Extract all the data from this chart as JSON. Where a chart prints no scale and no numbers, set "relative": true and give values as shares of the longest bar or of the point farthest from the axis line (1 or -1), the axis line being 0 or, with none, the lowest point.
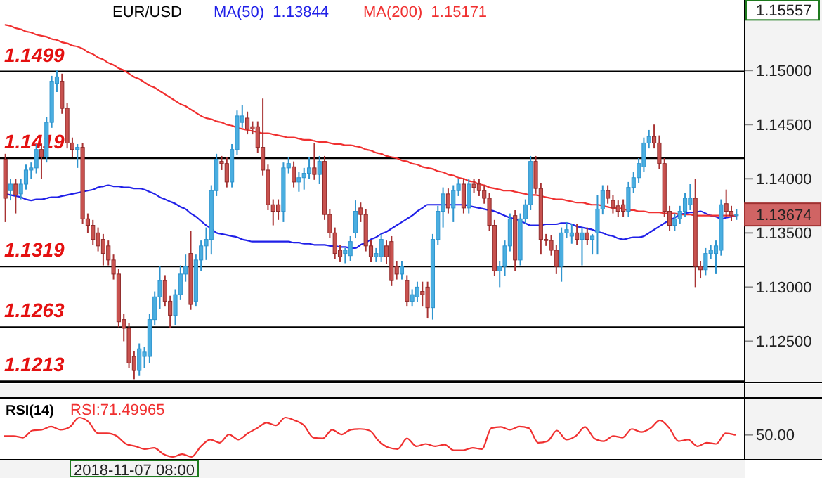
{
  "chart_data": [
    {
      "type": "candlestick",
      "title": "EUR/USD",
      "legend": "top",
      "tick_labels": "y",
      "categories": [
        null,
        null,
        null,
        null,
        null,
        null,
        null,
        null,
        null,
        null,
        null,
        null,
        null,
        null,
        null,
        null,
        null,
        null,
        null,
        null,
        null,
        null,
        null,
        null,
        null,
        null,
        null,
        null,
        null,
        null,
        null,
        null,
        null,
        null,
        null,
        null,
        null,
        null,
        null,
        null,
        null,
        null,
        null,
        null,
        null,
        null,
        null,
        null,
        null,
        null,
        null,
        null,
        null,
        null,
        null,
        null,
        null,
        null,
        null,
        null,
        null,
        null,
        null,
        null,
        null,
        null,
        null,
        null,
        null,
        null,
        null,
        null,
        null,
        null,
        null,
        null,
        null,
        null,
        null,
        null,
        null,
        null,
        null,
        null,
        null,
        null,
        null,
        null,
        null,
        null,
        null,
        null,
        null,
        null,
        null,
        null,
        null,
        null,
        null,
        null,
        null,
        null,
        null,
        null,
        null,
        null,
        null,
        null,
        null,
        null,
        null,
        null,
        null,
        null,
        null,
        null,
        null,
        null,
        null,
        null,
        null,
        null,
        null,
        null,
        null,
        null,
        null,
        null,
        null,
        null,
        null,
        null,
        null,
        null,
        null,
        null,
        null,
        null,
        null,
        null,
        null,
        null,
        null
      ],
      "ohlc": [
        [
          1.1418,
          1.1423,
          1.136,
          1.1382
        ],
        [
          1.1389,
          1.14,
          1.138,
          1.1395
        ],
        [
          1.1395,
          1.14,
          1.1368,
          1.1385
        ],
        [
          1.1386,
          1.14,
          1.1381,
          1.1395
        ],
        [
          1.1395,
          1.1413,
          1.139,
          1.1408
        ],
        [
          1.1408,
          1.1415,
          1.14,
          1.141
        ],
        [
          1.141,
          1.1432,
          1.1405,
          1.1427
        ],
        [
          1.1427,
          1.1432,
          1.14,
          1.142
        ],
        [
          1.142,
          1.1457,
          1.1415,
          1.1452
        ],
        [
          1.1452,
          1.1495,
          1.1447,
          1.149
        ],
        [
          1.1488,
          1.15,
          1.148,
          1.1494
        ],
        [
          1.149,
          1.1497,
          1.146,
          1.1465
        ],
        [
          1.1465,
          1.147,
          1.1428,
          1.1433
        ],
        [
          1.1433,
          1.1438,
          1.142,
          1.1427
        ],
        [
          1.1427,
          1.1432,
          1.141,
          1.1429
        ],
        [
          1.1429,
          1.1433,
          1.1358,
          1.1363
        ],
        [
          1.1363,
          1.1368,
          1.135,
          1.1357
        ],
        [
          1.1357,
          1.1362,
          1.1339,
          1.1344
        ],
        [
          1.135,
          1.1355,
          1.1333,
          1.1338
        ],
        [
          1.1344,
          1.1349,
          1.132,
          1.1331
        ],
        [
          1.1338,
          1.1343,
          1.132,
          1.1325
        ],
        [
          1.1325,
          1.133,
          1.1307,
          1.1312
        ],
        [
          1.1312,
          1.1317,
          1.1263,
          1.1268
        ],
        [
          1.127,
          1.1275,
          1.125,
          1.1262
        ],
        [
          1.1262,
          1.1267,
          1.1225,
          1.123
        ],
        [
          1.1236,
          1.1241,
          1.1215,
          1.1223
        ],
        [
          1.1223,
          1.1248,
          1.1218,
          1.1243
        ],
        [
          1.1236,
          1.1245,
          1.1225,
          1.124
        ],
        [
          1.1236,
          1.1275,
          1.123,
          1.127
        ],
        [
          1.127,
          1.1296,
          1.1265,
          1.1291
        ],
        [
          1.1291,
          1.1319,
          1.128,
          1.1306
        ],
        [
          1.1306,
          1.1311,
          1.1282,
          1.1287
        ],
        [
          1.1287,
          1.1292,
          1.1262,
          1.1274
        ],
        [
          1.1274,
          1.1298,
          1.1265,
          1.1293
        ],
        [
          1.1293,
          1.132,
          1.1288,
          1.1312
        ],
        [
          1.1312,
          1.133,
          1.1305,
          1.1319
        ],
        [
          1.1331,
          1.1352,
          1.1279,
          1.1284
        ],
        [
          1.1287,
          1.133,
          1.1282,
          1.1325
        ],
        [
          1.1325,
          1.1343,
          1.1315,
          1.1338
        ],
        [
          1.1338,
          1.1355,
          1.1325,
          1.1344
        ],
        [
          1.1344,
          1.1394,
          1.133,
          1.1389
        ],
        [
          1.1389,
          1.1423,
          1.1384,
          1.1418
        ],
        [
          1.1416,
          1.1421,
          1.1408,
          1.1414
        ],
        [
          1.1414,
          1.142,
          1.1392,
          1.1397
        ],
        [
          1.1397,
          1.1432,
          1.1392,
          1.1427
        ],
        [
          1.1427,
          1.1463,
          1.1422,
          1.1458
        ],
        [
          1.1452,
          1.1468,
          1.1447,
          1.1458
        ],
        [
          1.1456,
          1.1462,
          1.1441,
          1.1446
        ],
        [
          1.1448,
          1.1453,
          1.1441,
          1.1446
        ],
        [
          1.1448,
          1.1453,
          1.1424,
          1.1429
        ],
        [
          1.1429,
          1.1474,
          1.1403,
          1.1408
        ],
        [
          1.1408,
          1.1413,
          1.1371,
          1.1376
        ],
        [
          1.1376,
          1.1381,
          1.1357,
          1.137
        ],
        [
          1.1376,
          1.1381,
          1.1362,
          1.137
        ],
        [
          1.137,
          1.1415,
          1.136,
          1.141
        ],
        [
          1.141,
          1.142,
          1.1405,
          1.1414
        ],
        [
          1.1411,
          1.1416,
          1.1392,
          1.1397
        ],
        [
          1.1397,
          1.1406,
          1.1388,
          1.1401
        ],
        [
          1.1401,
          1.141,
          1.139,
          1.1405
        ],
        [
          1.1405,
          1.142,
          1.14,
          1.141
        ],
        [
          1.141,
          1.1433,
          1.1399,
          1.1404
        ],
        [
          1.1404,
          1.1421,
          1.1395,
          1.1416
        ],
        [
          1.1416,
          1.1421,
          1.1362,
          1.1367
        ],
        [
          1.1367,
          1.1372,
          1.1345,
          1.135
        ],
        [
          1.135,
          1.1355,
          1.1326,
          1.1331
        ],
        [
          1.1334,
          1.1339,
          1.1323,
          1.1328
        ],
        [
          1.1331,
          1.1336,
          1.1322,
          1.1334
        ],
        [
          1.1329,
          1.1347,
          1.1324,
          1.1342
        ],
        [
          1.135,
          1.138,
          1.1345,
          1.137
        ],
        [
          1.1373,
          1.1378,
          1.136,
          1.1367
        ],
        [
          1.1367,
          1.1372,
          1.1333,
          1.1338
        ],
        [
          1.1338,
          1.1343,
          1.1323,
          1.1328
        ],
        [
          1.1328,
          1.1336,
          1.1323,
          1.1331
        ],
        [
          1.1328,
          1.1349,
          1.1323,
          1.1344
        ],
        [
          1.1338,
          1.1343,
          1.1321,
          1.1328
        ],
        [
          1.1342,
          1.1347,
          1.1301,
          1.1306
        ],
        [
          1.1319,
          1.1324,
          1.1307,
          1.1312
        ],
        [
          1.1312,
          1.1324,
          1.1307,
          1.1319
        ],
        [
          1.1306,
          1.1311,
          1.1282,
          1.1287
        ],
        [
          1.1287,
          1.1298,
          1.1282,
          1.1293
        ],
        [
          1.1291,
          1.1305,
          1.1286,
          1.13
        ],
        [
          1.1296,
          1.1305,
          1.1282,
          1.1293
        ],
        [
          1.13,
          1.1305,
          1.1271,
          1.1281
        ],
        [
          1.1281,
          1.1349,
          1.127,
          1.1344
        ],
        [
          1.1344,
          1.1375,
          1.1339,
          1.137
        ],
        [
          1.137,
          1.1392,
          1.1355,
          1.1386
        ],
        [
          1.1386,
          1.1391,
          1.1368,
          1.1373
        ],
        [
          1.1373,
          1.1394,
          1.136,
          1.1389
        ],
        [
          1.1389,
          1.14,
          1.1384,
          1.1395
        ],
        [
          1.1395,
          1.14,
          1.1368,
          1.1373
        ],
        [
          1.1373,
          1.14,
          1.1368,
          1.1395
        ],
        [
          1.1395,
          1.14,
          1.1387,
          1.1392
        ],
        [
          1.1395,
          1.14,
          1.1384,
          1.1389
        ],
        [
          1.1389,
          1.1394,
          1.1377,
          1.1382
        ],
        [
          1.1382,
          1.1387,
          1.1352,
          1.1357
        ],
        [
          1.1357,
          1.1362,
          1.131,
          1.1315
        ],
        [
          1.1315,
          1.1324,
          1.13,
          1.1319
        ],
        [
          1.1319,
          1.1343,
          1.131,
          1.1338
        ],
        [
          1.1338,
          1.1368,
          1.1333,
          1.1363
        ],
        [
          1.1366,
          1.1371,
          1.1315,
          1.1325
        ],
        [
          1.1325,
          1.1368,
          1.132,
          1.1363
        ],
        [
          1.1363,
          1.1381,
          1.1358,
          1.1376
        ],
        [
          1.1376,
          1.1421,
          1.1371,
          1.1416
        ],
        [
          1.1416,
          1.1421,
          1.1386,
          1.1391
        ],
        [
          1.1391,
          1.1396,
          1.133,
          1.1344
        ],
        [
          1.1344,
          1.1349,
          1.1338,
          1.1343
        ],
        [
          1.1343,
          1.1348,
          1.1329,
          1.1334
        ],
        [
          1.1334,
          1.1339,
          1.1312,
          1.1319
        ],
        [
          1.1319,
          1.1355,
          1.1305,
          1.135
        ],
        [
          1.135,
          1.136,
          1.1345,
          1.1353
        ],
        [
          1.1347,
          1.1358,
          1.134,
          1.135
        ],
        [
          1.135,
          1.1358,
          1.1339,
          1.1344
        ],
        [
          1.1344,
          1.1355,
          1.132,
          1.135
        ],
        [
          1.135,
          1.1355,
          1.1339,
          1.1344
        ],
        [
          1.1344,
          1.1349,
          1.133,
          1.1347
        ],
        [
          1.135,
          1.1385,
          1.133,
          1.1372
        ],
        [
          1.1372,
          1.1394,
          1.1367,
          1.1389
        ],
        [
          1.1389,
          1.1394,
          1.1377,
          1.1382
        ],
        [
          1.138,
          1.1385,
          1.1368,
          1.1373
        ],
        [
          1.1375,
          1.138,
          1.1365,
          1.137
        ],
        [
          1.1376,
          1.1381,
          1.1365,
          1.137
        ],
        [
          1.137,
          1.1397,
          1.1365,
          1.1392
        ],
        [
          1.1392,
          1.1406,
          1.1387,
          1.1401
        ],
        [
          1.1401,
          1.1419,
          1.1396,
          1.1414
        ],
        [
          1.1411,
          1.1438,
          1.1406,
          1.1433
        ],
        [
          1.1433,
          1.1445,
          1.1428,
          1.1439
        ],
        [
          1.1439,
          1.145,
          1.1428,
          1.1433
        ],
        [
          1.1433,
          1.144,
          1.1409,
          1.1414
        ],
        [
          1.1414,
          1.1419,
          1.1365,
          1.137
        ],
        [
          1.137,
          1.1375,
          1.1352,
          1.1357
        ],
        [
          1.1357,
          1.1368,
          1.1352,
          1.1363
        ],
        [
          1.1363,
          1.1375,
          1.1358,
          1.137
        ],
        [
          1.137,
          1.1387,
          1.1365,
          1.1382
        ],
        [
          1.1376,
          1.1395,
          1.1371,
          1.1382
        ],
        [
          1.1382,
          1.14,
          1.13,
          1.1319
        ],
        [
          1.1319,
          1.1324,
          1.1308,
          1.1316
        ],
        [
          1.1316,
          1.1336,
          1.1311,
          1.1331
        ],
        [
          1.1331,
          1.1339,
          1.1326,
          1.1334
        ],
        [
          1.1331,
          1.1343,
          1.1312,
          1.1338
        ],
        [
          1.1334,
          1.1381,
          1.1329,
          1.1376
        ],
        [
          1.1377,
          1.139,
          1.1365,
          1.137
        ],
        [
          1.137,
          1.1375,
          1.1361,
          1.1366
        ],
        [
          1.1366,
          1.1372,
          1.1362,
          1.1367
        ]
      ],
      "series": [
        {
          "type": "line",
          "name": "MA(50)  1.13844",
          "color": "#2020e8",
          "values": [
            1.1386,
            1.1385,
            1.1384,
            1.1383,
            1.1381,
            1.138,
            1.1381,
            1.1381,
            1.1382,
            1.1383,
            1.1383,
            1.1384,
            1.1385,
            1.1386,
            1.1387,
            1.1388,
            1.1389,
            1.139,
            1.1392,
            1.1393,
            1.1394,
            1.1393,
            1.1393,
            1.1392,
            1.1392,
            1.1391,
            1.1391,
            1.139,
            1.1388,
            1.1386,
            1.1383,
            1.1381,
            1.1379,
            1.1377,
            1.1374,
            1.1372,
            1.1368,
            1.1365,
            1.1361,
            1.1357,
            1.1354,
            1.135,
            1.1349,
            1.1348,
            1.1347,
            1.1346,
            1.1344,
            1.1343,
            1.1342,
            1.1342,
            1.1342,
            1.1342,
            1.1342,
            1.1342,
            1.1342,
            1.1342,
            1.1341,
            1.1341,
            1.134,
            1.134,
            1.1339,
            1.1339,
            1.1339,
            1.1338,
            1.1338,
            1.1337,
            1.1337,
            1.1336,
            1.1336,
            1.1339,
            1.1341,
            1.1344,
            1.1346,
            1.1349,
            1.1351,
            1.1354,
            1.1357,
            1.136,
            1.1363,
            1.1366,
            1.137,
            1.1373,
            1.1376,
            1.1376,
            1.1376,
            1.1376,
            1.1376,
            1.1376,
            1.1376,
            1.1376,
            1.1375,
            1.1374,
            1.1373,
            1.1372,
            1.1371,
            1.137,
            1.1368,
            1.1366,
            1.1364,
            1.1363,
            1.1361,
            1.1359,
            1.1357,
            1.1357,
            1.1357,
            1.1358,
            1.1358,
            1.1358,
            1.1359,
            1.1359,
            1.1358,
            1.1356,
            1.1355,
            1.1354,
            1.1353,
            1.1351,
            1.135,
            1.1348,
            1.1347,
            1.1345,
            1.1344,
            1.1345,
            1.1346,
            1.1346,
            1.1347,
            1.135,
            1.1353,
            1.1356,
            1.1359,
            1.1362,
            1.1364,
            1.1367,
            1.1368,
            1.1369,
            1.1369,
            1.137,
            1.1368,
            1.1366,
            1.1365,
            1.1363,
            1.1364,
            1.1365,
            1.1366
          ]
        },
        {
          "type": "line",
          "name": "MA(200)  1.15171",
          "color": "#f03030",
          "values": [
            1.1542,
            1.1541,
            1.1539,
            1.1538,
            1.1536,
            1.1535,
            1.1533,
            1.1532,
            1.1531,
            1.1529,
            1.1528,
            1.1526,
            1.1525,
            1.1523,
            1.1522,
            1.152,
            1.1517,
            1.1515,
            1.1512,
            1.151,
            1.1507,
            1.1505,
            1.1502,
            1.15,
            1.1497,
            1.1494,
            1.1492,
            1.1489,
            1.1486,
            1.1484,
            1.1481,
            1.1478,
            1.1475,
            1.1472,
            1.1469,
            1.1467,
            1.1464,
            1.1461,
            1.1458,
            1.1456,
            1.1455,
            1.1453,
            1.1452,
            1.145,
            1.1449,
            1.1447,
            1.1446,
            1.1445,
            1.1444,
            1.1443,
            1.1442,
            1.1442,
            1.1441,
            1.144,
            1.1439,
            1.1438,
            1.1438,
            1.1437,
            1.1436,
            1.1436,
            1.1435,
            1.1434,
            1.1434,
            1.1433,
            1.1432,
            1.1432,
            1.1431,
            1.1431,
            1.143,
            1.1429,
            1.1427,
            1.1426,
            1.1424,
            1.1423,
            1.1421,
            1.142,
            1.1419,
            1.1417,
            1.1416,
            1.1414,
            1.1413,
            1.1411,
            1.141,
            1.1409,
            1.1407,
            1.1406,
            1.1404,
            1.1403,
            1.1401,
            1.14,
            1.1398,
            1.1397,
            1.1395,
            1.1394,
            1.1392,
            1.1391,
            1.139,
            1.1389,
            1.1389,
            1.1388,
            1.1387,
            1.1386,
            1.1385,
            1.1385,
            1.1384,
            1.1383,
            1.1382,
            1.1381,
            1.1381,
            1.138,
            1.1379,
            1.1378,
            1.1378,
            1.1377,
            1.1376,
            1.1376,
            1.1375,
            1.1374,
            1.1373,
            1.1373,
            1.1372,
            1.1371,
            1.1371,
            1.137,
            1.137,
            1.1369,
            1.1369,
            1.1369,
            1.1368,
            1.1368,
            1.1368,
            1.1367,
            1.1367,
            1.1367,
            1.1366,
            1.1366,
            1.1366,
            1.1366,
            1.1366,
            1.1366,
            1.1366,
            1.1366,
            1.1366
          ]
        }
      ],
      "ylim": [
        1.1212,
        1.1565
      ],
      "yticks": [
        {
          "value": 1.15557,
          "label": "1.15557"
        },
        {
          "value": 1.15,
          "label": "1.15000"
        },
        {
          "value": 1.145,
          "label": "1.14500"
        },
        {
          "value": 1.14,
          "label": "1.14000"
        },
        {
          "value": 1.135,
          "label": "1.13500"
        },
        {
          "value": 1.13,
          "label": "1.13000"
        },
        {
          "value": 1.125,
          "label": "1.12500"
        }
      ],
      "ref_lines": [
        {
          "axis": "y",
          "value": 1.1499,
          "label": "1.1499",
          "color": "#000000"
        },
        {
          "axis": "y",
          "value": 1.1419,
          "label": "1.1419",
          "color": "#000000"
        },
        {
          "axis": "y",
          "value": 1.1319,
          "label": "1.1319",
          "color": "#000000"
        },
        {
          "axis": "y",
          "value": 1.1263,
          "label": "1.1263",
          "color": "#000000"
        },
        {
          "axis": "y",
          "value": 1.1213,
          "label": "1.1213",
          "color": "#000000"
        }
      ],
      "annotations": [
        "1.13674"
      ]
    },
    {
      "type": "line",
      "title": "RSI(14)",
      "legend": "top left",
      "relative": true,
      "categories": [
        null,
        null,
        null,
        null,
        null,
        null,
        null,
        null,
        null,
        null,
        null,
        null,
        null,
        null,
        null,
        null,
        null,
        null,
        null,
        null,
        null,
        null,
        null,
        null,
        null,
        null,
        null,
        null,
        null,
        null,
        null,
        null,
        null,
        null,
        null,
        null,
        null,
        null,
        null,
        null,
        null,
        null,
        null,
        null,
        null,
        null,
        null,
        null,
        null,
        null,
        null,
        null,
        null,
        null,
        null,
        null,
        null,
        null,
        null,
        null,
        null,
        null,
        null,
        null,
        null,
        null,
        null,
        null,
        null,
        null,
        null,
        null,
        null,
        null,
        null,
        null,
        null,
        null,
        null
      ],
      "series": [
        {
          "name": "RSI:71.49965",
          "color": "#f03030",
          "values": [
            0.53,
            0.53,
            0.49,
            0.67,
            0.69,
            0.77,
            0.69,
            0.76,
            1,
            0.89,
            0.6,
            0.6,
            0.53,
            0.33,
            0.27,
            0.2,
            0.23,
            0.07,
            0,
            0.07,
            0,
            0.27,
            0.44,
            0.36,
            0.57,
            0.44,
            0.6,
            0.73,
            0.87,
            0.8,
            1,
            0.93,
            0.8,
            0.49,
            0.47,
            0.69,
            0.57,
            0.69,
            0.71,
            0.67,
            0.4,
            0.24,
            0.2,
            0.47,
            0.27,
            0.33,
            0.27,
            0.31,
            0.17,
            0.17,
            0.23,
            0.2,
            0.73,
            0.76,
            0.69,
            0.77,
            0.73,
            0.36,
            0.4,
            0.67,
            0.44,
            0.53,
            0.76,
            0.47,
            0.4,
            0.53,
            0.49,
            0.71,
            0.63,
            0.73,
            0.93,
            0.73,
            0.4,
            0.44,
            0.27,
            0.36,
            0.33,
            0.6,
            0.56
          ]
        }
      ],
      "annotations": [
        "50.00",
        "2018-11-07 08:00"
      ]
    }
  ]
}
